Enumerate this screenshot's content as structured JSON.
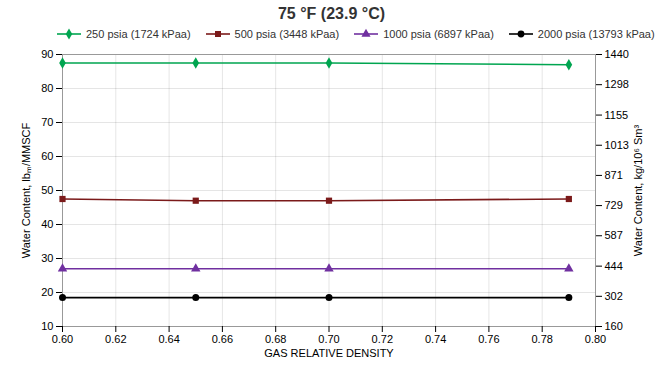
{
  "chart_data": {
    "type": "line",
    "title": "75 °F (23.9 °C)",
    "xlabel": "GAS RELATIVE DENSITY",
    "ylabel": "Water Content, lbₘ/MMSCF",
    "y2label": "Water Content, kg/10⁶ Sm³",
    "x": [
      0.6,
      0.65,
      0.7,
      0.79
    ],
    "series": [
      {
        "name": "250 psia (1724 kPaa)",
        "color": "#00a550",
        "marker": "diamond",
        "values": [
          87.5,
          87.5,
          87.5,
          87.0
        ]
      },
      {
        "name": "500 psia (3448 kPaa)",
        "color": "#7b1a1a",
        "marker": "square",
        "values": [
          47.5,
          47.0,
          47.0,
          47.5
        ]
      },
      {
        "name": "1000 psia (6897 kPaa)",
        "color": "#7030a0",
        "marker": "triangle",
        "values": [
          27.0,
          27.0,
          27.0,
          27.0
        ]
      },
      {
        "name": "2000 psia (13793 kPaa)",
        "color": "#000000",
        "marker": "circle",
        "values": [
          18.5,
          18.5,
          18.5,
          18.5
        ]
      }
    ],
    "xlim": [
      0.6,
      0.8
    ],
    "xticks": [
      {
        "value": 0.6,
        "label": "0.60"
      },
      0.62,
      0.64,
      0.66,
      0.68,
      {
        "value": 0.7,
        "label": "0.70"
      },
      0.72,
      0.74,
      0.76,
      0.78,
      {
        "value": 0.8,
        "label": "0.80"
      }
    ],
    "ylim": [
      10,
      90
    ],
    "yticks": [
      10,
      20,
      30,
      40,
      50,
      60,
      70,
      80,
      90
    ],
    "y2lim": [
      160,
      1440
    ],
    "y2ticks": [
      160,
      302,
      444,
      587,
      729,
      871,
      1013,
      1155,
      1298,
      1440
    ],
    "grid": true,
    "legend": "upper left"
  }
}
